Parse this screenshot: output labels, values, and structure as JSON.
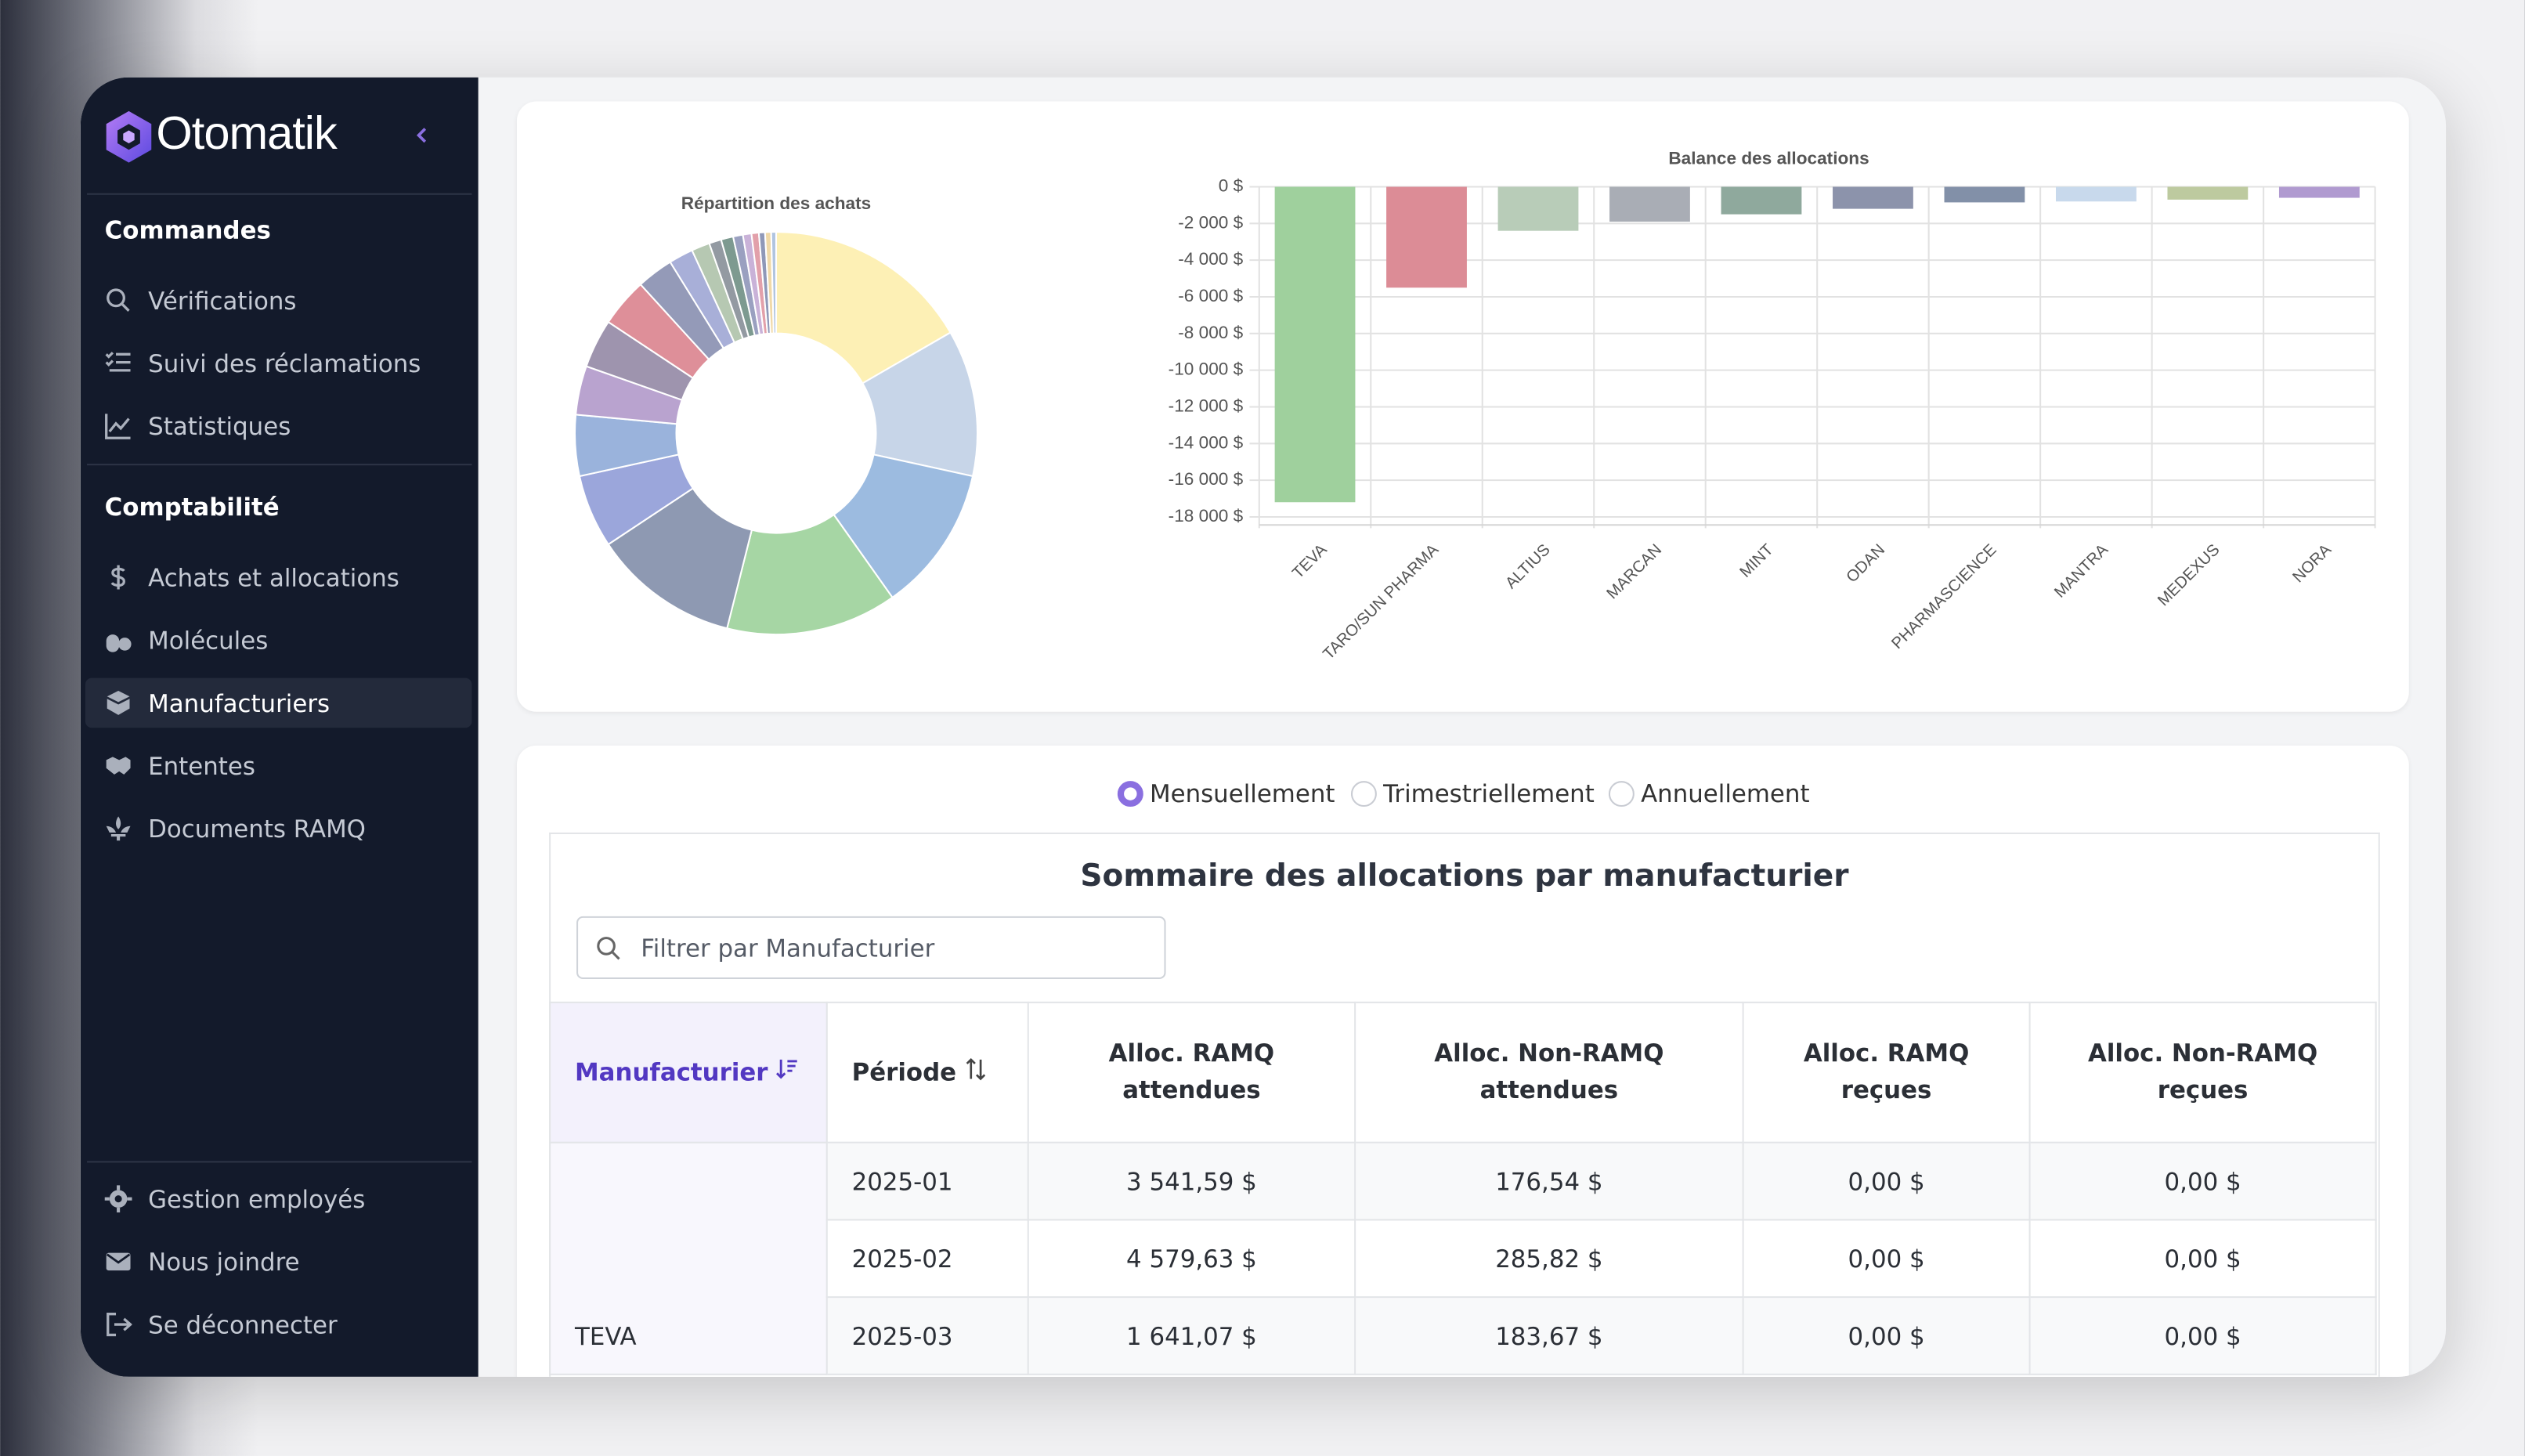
{
  "brand": "Otomatik",
  "sidebar": {
    "sections": [
      {
        "title": "Commandes",
        "items": [
          {
            "label": "Vérifications"
          },
          {
            "label": "Suivi des réclamations"
          },
          {
            "label": "Statistiques"
          }
        ]
      },
      {
        "title": "Comptabilité",
        "items": [
          {
            "label": "Achats et allocations"
          },
          {
            "label": "Molécules"
          },
          {
            "label": "Manufacturiers",
            "active": true
          },
          {
            "label": "Ententes"
          },
          {
            "label": "Documents RAMQ"
          }
        ]
      }
    ],
    "footer_items": [
      {
        "label": "Gestion employés"
      },
      {
        "label": "Nous joindre"
      },
      {
        "label": "Se déconnecter"
      }
    ]
  },
  "chart_data": [
    {
      "type": "pie",
      "title": "Répartition des achats",
      "donut": true,
      "values": [
        17,
        12,
        12,
        14,
        12,
        6,
        5,
        4,
        4,
        4,
        3,
        2,
        1.5,
        1,
        1,
        0.8,
        0.7,
        0.6,
        0.5,
        0.5,
        0.4
      ],
      "colors": [
        "#fdf0b5",
        "#c7d5e8",
        "#9cbbe0",
        "#a6d6a4",
        "#8e99b2",
        "#9ba6db",
        "#9ab3dc",
        "#b9a3cf",
        "#9e94ae",
        "#de8f99",
        "#949ab8",
        "#a8afd8",
        "#b6c8b2",
        "#939aa2",
        "#7d9a90",
        "#9aa0c0",
        "#c9b2d8",
        "#e2a0aa",
        "#8f98b8",
        "#f0d9a8",
        "#b0c4e0"
      ]
    },
    {
      "type": "bar",
      "title": "Balance des allocations",
      "categories": [
        "TEVA",
        "TARO/SUN PHARMA",
        "ALTIUS",
        "MARCAN",
        "MINT",
        "ODAN",
        "PHARMASCIENCE",
        "MANTRA",
        "MEDEXUS",
        "NORA"
      ],
      "values": [
        -17200,
        -5500,
        -2400,
        -1900,
        -1500,
        -1200,
        -850,
        -800,
        -700,
        -600
      ],
      "colors": [
        "#9fd09d",
        "#dc8c96",
        "#b8ccb8",
        "#a9adb5",
        "#8fa99d",
        "#8c93ab",
        "#8290a8",
        "#c8d9ec",
        "#bdca9f",
        "#b09ad0"
      ],
      "ylim": [
        -18000,
        0
      ],
      "yticks": [
        {
          "value": 0,
          "label": "0 $"
        },
        {
          "value": -2000,
          "label": "-2 000 $"
        },
        {
          "value": -4000,
          "label": "-4 000 $"
        },
        {
          "value": -6000,
          "label": "-6 000 $"
        },
        {
          "value": -8000,
          "label": "-8 000 $"
        },
        {
          "value": -10000,
          "label": "-10 000 $"
        },
        {
          "value": -12000,
          "label": "-12 000 $"
        },
        {
          "value": -14000,
          "label": "-14 000 $"
        },
        {
          "value": -16000,
          "label": "-16 000 $"
        },
        {
          "value": -18000,
          "label": "-18 000 $"
        }
      ],
      "grid": true
    }
  ],
  "period_options": [
    {
      "label": "Mensuellement",
      "selected": true
    },
    {
      "label": "Trimestriellement"
    },
    {
      "label": "Annuellement"
    }
  ],
  "summary": {
    "title": "Sommaire des allocations par manufacturier",
    "filter_placeholder": "Filtrer par Manufacturier",
    "columns": [
      "Manufacturier",
      "Période",
      "Alloc. RAMQ attendues",
      "Alloc. Non-RAMQ attendues",
      "Alloc. RAMQ reçues",
      "Alloc. Non-RAMQ reçues"
    ],
    "rows": [
      {
        "manufacturer": "TEVA",
        "entries": [
          [
            "2025-01",
            "3 541,59 $",
            "176,54 $",
            "0,00 $",
            "0,00 $"
          ],
          [
            "2025-02",
            "4 579,63 $",
            "285,82 $",
            "0,00 $",
            "0,00 $"
          ],
          [
            "2025-03",
            "1 641,07 $",
            "183,67 $",
            "0,00 $",
            "0,00 $"
          ]
        ]
      }
    ]
  }
}
